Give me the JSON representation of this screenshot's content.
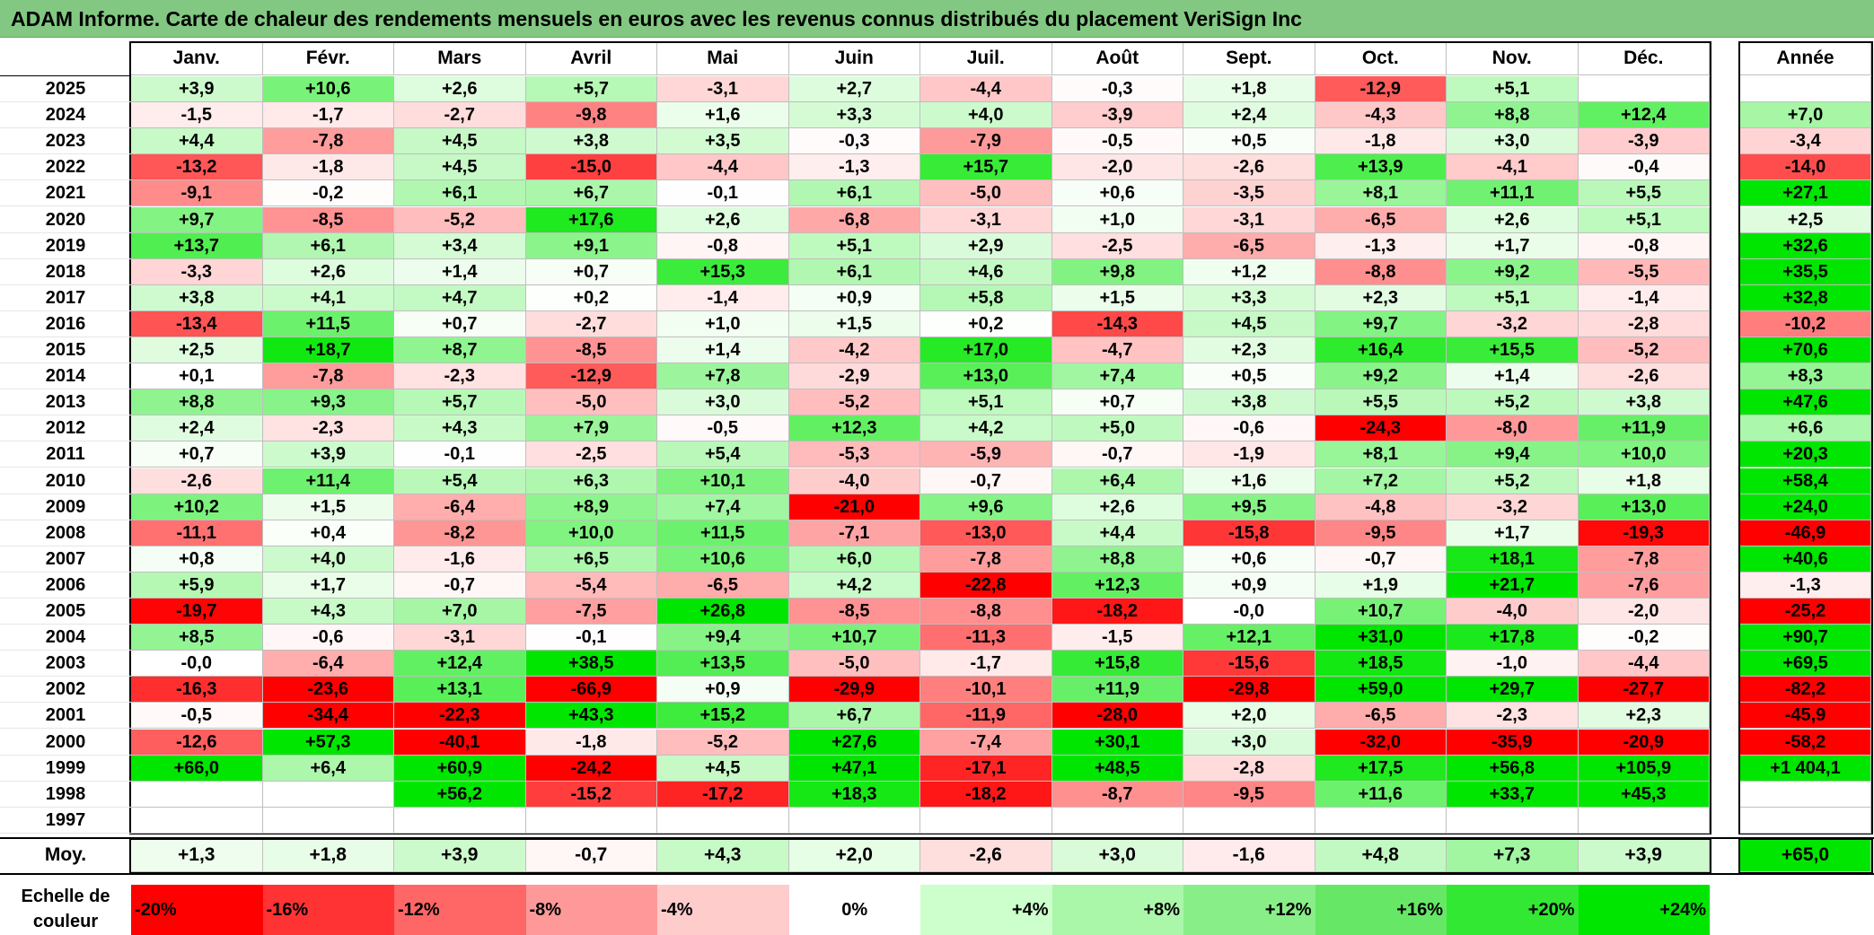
{
  "title": "ADAM Informe. Carte de chaleur des rendements mensuels en euros avec les revenus connus distribués du placement VeriSign Inc",
  "chart_data": {
    "type": "heatmap",
    "title": "ADAM Informe. Carte de chaleur des rendements mensuels en euros avec les revenus connus distribués du placement VeriSign Inc",
    "months": [
      "Janv.",
      "Févr.",
      "Mars",
      "Avril",
      "Mai",
      "Juin",
      "Juil.",
      "Août",
      "Sept.",
      "Oct.",
      "Nov.",
      "Déc."
    ],
    "annual_header": "Année",
    "rows": [
      {
        "year": "2025",
        "values": [
          "+3,9",
          "+10,6",
          "+2,6",
          "+5,7",
          "-3,1",
          "+2,7",
          "-4,4",
          "-0,3",
          "+1,8",
          "-12,9",
          "+5,1",
          ""
        ],
        "annual": ""
      },
      {
        "year": "2024",
        "values": [
          "-1,5",
          "-1,7",
          "-2,7",
          "-9,8",
          "+1,6",
          "+3,3",
          "+4,0",
          "-3,9",
          "+2,4",
          "-4,3",
          "+8,8",
          "+12,4"
        ],
        "annual": "+7,0"
      },
      {
        "year": "2023",
        "values": [
          "+4,4",
          "-7,8",
          "+4,5",
          "+3,8",
          "+3,5",
          "-0,3",
          "-7,9",
          "-0,5",
          "+0,5",
          "-1,8",
          "+3,0",
          "-3,9"
        ],
        "annual": "-3,4"
      },
      {
        "year": "2022",
        "values": [
          "-13,2",
          "-1,8",
          "+4,5",
          "-15,0",
          "-4,4",
          "-1,3",
          "+15,7",
          "-2,0",
          "-2,6",
          "+13,9",
          "-4,1",
          "-0,4"
        ],
        "annual": "-14,0"
      },
      {
        "year": "2021",
        "values": [
          "-9,1",
          "-0,2",
          "+6,1",
          "+6,7",
          "-0,1",
          "+6,1",
          "-5,0",
          "+0,6",
          "-3,5",
          "+8,1",
          "+11,1",
          "+5,5"
        ],
        "annual": "+27,1"
      },
      {
        "year": "2020",
        "values": [
          "+9,7",
          "-8,5",
          "-5,2",
          "+17,6",
          "+2,6",
          "-6,8",
          "-3,1",
          "+1,0",
          "-3,1",
          "-6,5",
          "+2,6",
          "+5,1"
        ],
        "annual": "+2,5"
      },
      {
        "year": "2019",
        "values": [
          "+13,7",
          "+6,1",
          "+3,4",
          "+9,1",
          "-0,8",
          "+5,1",
          "+2,9",
          "-2,5",
          "-6,5",
          "-1,3",
          "+1,7",
          "-0,8"
        ],
        "annual": "+32,6"
      },
      {
        "year": "2018",
        "values": [
          "-3,3",
          "+2,6",
          "+1,4",
          "+0,7",
          "+15,3",
          "+6,1",
          "+4,6",
          "+9,8",
          "+1,2",
          "-8,8",
          "+9,2",
          "-5,5"
        ],
        "annual": "+35,5"
      },
      {
        "year": "2017",
        "values": [
          "+3,8",
          "+4,1",
          "+4,7",
          "+0,2",
          "-1,4",
          "+0,9",
          "+5,8",
          "+1,5",
          "+3,3",
          "+2,3",
          "+5,1",
          "-1,4"
        ],
        "annual": "+32,8"
      },
      {
        "year": "2016",
        "values": [
          "-13,4",
          "+11,5",
          "+0,7",
          "-2,7",
          "+1,0",
          "+1,5",
          "+0,2",
          "-14,3",
          "+4,5",
          "+9,7",
          "-3,2",
          "-2,8"
        ],
        "annual": "-10,2"
      },
      {
        "year": "2015",
        "values": [
          "+2,5",
          "+18,7",
          "+8,7",
          "-8,5",
          "+1,4",
          "-4,2",
          "+17,0",
          "-4,7",
          "+2,3",
          "+16,4",
          "+15,5",
          "-5,2"
        ],
        "annual": "+70,6"
      },
      {
        "year": "2014",
        "values": [
          "+0,1",
          "-7,8",
          "-2,3",
          "-12,9",
          "+7,8",
          "-2,9",
          "+13,0",
          "+7,4",
          "+0,5",
          "+9,2",
          "+1,4",
          "-2,6"
        ],
        "annual": "+8,3"
      },
      {
        "year": "2013",
        "values": [
          "+8,8",
          "+9,3",
          "+5,7",
          "-5,0",
          "+3,0",
          "-5,2",
          "+5,1",
          "+0,7",
          "+3,8",
          "+5,5",
          "+5,2",
          "+3,8"
        ],
        "annual": "+47,6"
      },
      {
        "year": "2012",
        "values": [
          "+2,4",
          "-2,3",
          "+4,3",
          "+7,9",
          "-0,5",
          "+12,3",
          "+4,2",
          "+5,0",
          "-0,6",
          "-24,3",
          "-8,0",
          "+11,9"
        ],
        "annual": "+6,6"
      },
      {
        "year": "2011",
        "values": [
          "+0,7",
          "+3,9",
          "-0,1",
          "-2,5",
          "+5,4",
          "-5,3",
          "-5,9",
          "-0,7",
          "-1,9",
          "+8,1",
          "+9,4",
          "+10,0"
        ],
        "annual": "+20,3"
      },
      {
        "year": "2010",
        "values": [
          "-2,6",
          "+11,4",
          "+5,4",
          "+6,3",
          "+10,1",
          "-4,0",
          "-0,7",
          "+6,4",
          "+1,6",
          "+7,2",
          "+5,2",
          "+1,8"
        ],
        "annual": "+58,4"
      },
      {
        "year": "2009",
        "values": [
          "+10,2",
          "+1,5",
          "-6,4",
          "+8,9",
          "+7,4",
          "-21,0",
          "+9,6",
          "+2,6",
          "+9,5",
          "-4,8",
          "-3,2",
          "+13,0"
        ],
        "annual": "+24,0"
      },
      {
        "year": "2008",
        "values": [
          "-11,1",
          "+0,4",
          "-8,2",
          "+10,0",
          "+11,5",
          "-7,1",
          "-13,0",
          "+4,4",
          "-15,8",
          "-9,5",
          "+1,7",
          "-19,3"
        ],
        "annual": "-46,9"
      },
      {
        "year": "2007",
        "values": [
          "+0,8",
          "+4,0",
          "-1,6",
          "+6,5",
          "+10,6",
          "+6,0",
          "-7,8",
          "+8,8",
          "+0,6",
          "-0,7",
          "+18,1",
          "-7,8"
        ],
        "annual": "+40,6"
      },
      {
        "year": "2006",
        "values": [
          "+5,9",
          "+1,7",
          "-0,7",
          "-5,4",
          "-6,5",
          "+4,2",
          "-22,8",
          "+12,3",
          "+0,9",
          "+1,9",
          "+21,7",
          "-7,6"
        ],
        "annual": "-1,3"
      },
      {
        "year": "2005",
        "values": [
          "-19,7",
          "+4,3",
          "+7,0",
          "-7,5",
          "+26,8",
          "-8,5",
          "-8,8",
          "-18,2",
          "-0,0",
          "+10,7",
          "-4,0",
          "-2,0"
        ],
        "annual": "-25,2"
      },
      {
        "year": "2004",
        "values": [
          "+8,5",
          "-0,6",
          "-3,1",
          "-0,1",
          "+9,4",
          "+10,7",
          "-11,3",
          "-1,5",
          "+12,1",
          "+31,0",
          "+17,8",
          "-0,2"
        ],
        "annual": "+90,7"
      },
      {
        "year": "2003",
        "values": [
          "-0,0",
          "-6,4",
          "+12,4",
          "+38,5",
          "+13,5",
          "-5,0",
          "-1,7",
          "+15,8",
          "-15,6",
          "+18,5",
          "-1,0",
          "-4,4"
        ],
        "annual": "+69,5"
      },
      {
        "year": "2002",
        "values": [
          "-16,3",
          "-23,6",
          "+13,1",
          "-66,9",
          "+0,9",
          "-29,9",
          "-10,1",
          "+11,9",
          "-29,8",
          "+59,0",
          "+29,7",
          "-27,7"
        ],
        "annual": "-82,2"
      },
      {
        "year": "2001",
        "values": [
          "-0,5",
          "-34,4",
          "-22,3",
          "+43,3",
          "+15,2",
          "+6,7",
          "-11,9",
          "-28,0",
          "+2,0",
          "-6,5",
          "-2,3",
          "+2,3"
        ],
        "annual": "-45,9"
      },
      {
        "year": "2000",
        "values": [
          "-12,6",
          "+57,3",
          "-40,1",
          "-1,8",
          "-5,2",
          "+27,6",
          "-7,4",
          "+30,1",
          "+3,0",
          "-32,0",
          "-35,9",
          "-20,9"
        ],
        "annual": "-58,2"
      },
      {
        "year": "1999",
        "values": [
          "+66,0",
          "+6,4",
          "+60,9",
          "-24,2",
          "+4,5",
          "+47,1",
          "-17,1",
          "+48,5",
          "-2,8",
          "+17,5",
          "+56,8",
          "+105,9"
        ],
        "annual": "+1 404,1"
      },
      {
        "year": "1998",
        "values": [
          "",
          "",
          "+56,2",
          "-15,2",
          "-17,2",
          "+18,3",
          "-18,2",
          "-8,7",
          "-9,5",
          "+11,6",
          "+33,7",
          "+45,3"
        ],
        "annual": ""
      },
      {
        "year": "1997",
        "values": [
          "",
          "",
          "",
          "",
          "",
          "",
          "",
          "",
          "",
          "",
          "",
          ""
        ],
        "annual": ""
      }
    ],
    "average": {
      "label": "Moy.",
      "values": [
        "+1,3",
        "+1,8",
        "+3,9",
        "-0,7",
        "+4,3",
        "+2,0",
        "-2,6",
        "+3,0",
        "-1,6",
        "+4,8",
        "+7,3",
        "+3,9"
      ],
      "annual": "+65,0"
    },
    "scale": {
      "label_line1": "Echelle de",
      "label_line2": "couleur",
      "steps": [
        {
          "label": "-20%",
          "value": -20,
          "color": "#ff0000"
        },
        {
          "label": "-16%",
          "value": -16,
          "color": "#ff3333"
        },
        {
          "label": "-12%",
          "value": -12,
          "color": "#ff6666"
        },
        {
          "label": "-8%",
          "value": -8,
          "color": "#ff9999"
        },
        {
          "label": "-4%",
          "value": -4,
          "color": "#ffcccc"
        },
        {
          "label": "0%",
          "value": 0,
          "color": "#ffffff"
        },
        {
          "label": "+4%",
          "value": 4,
          "color": "#ccffcc"
        },
        {
          "label": "+8%",
          "value": 8,
          "color": "#aaf7aa"
        },
        {
          "label": "+12%",
          "value": 12,
          "color": "#88ef88"
        },
        {
          "label": "+16%",
          "value": 16,
          "color": "#66e866"
        },
        {
          "label": "+20%",
          "value": 20,
          "color": "#33e833"
        },
        {
          "label": "+24%",
          "value": 24,
          "color": "#00e600"
        }
      ]
    }
  }
}
